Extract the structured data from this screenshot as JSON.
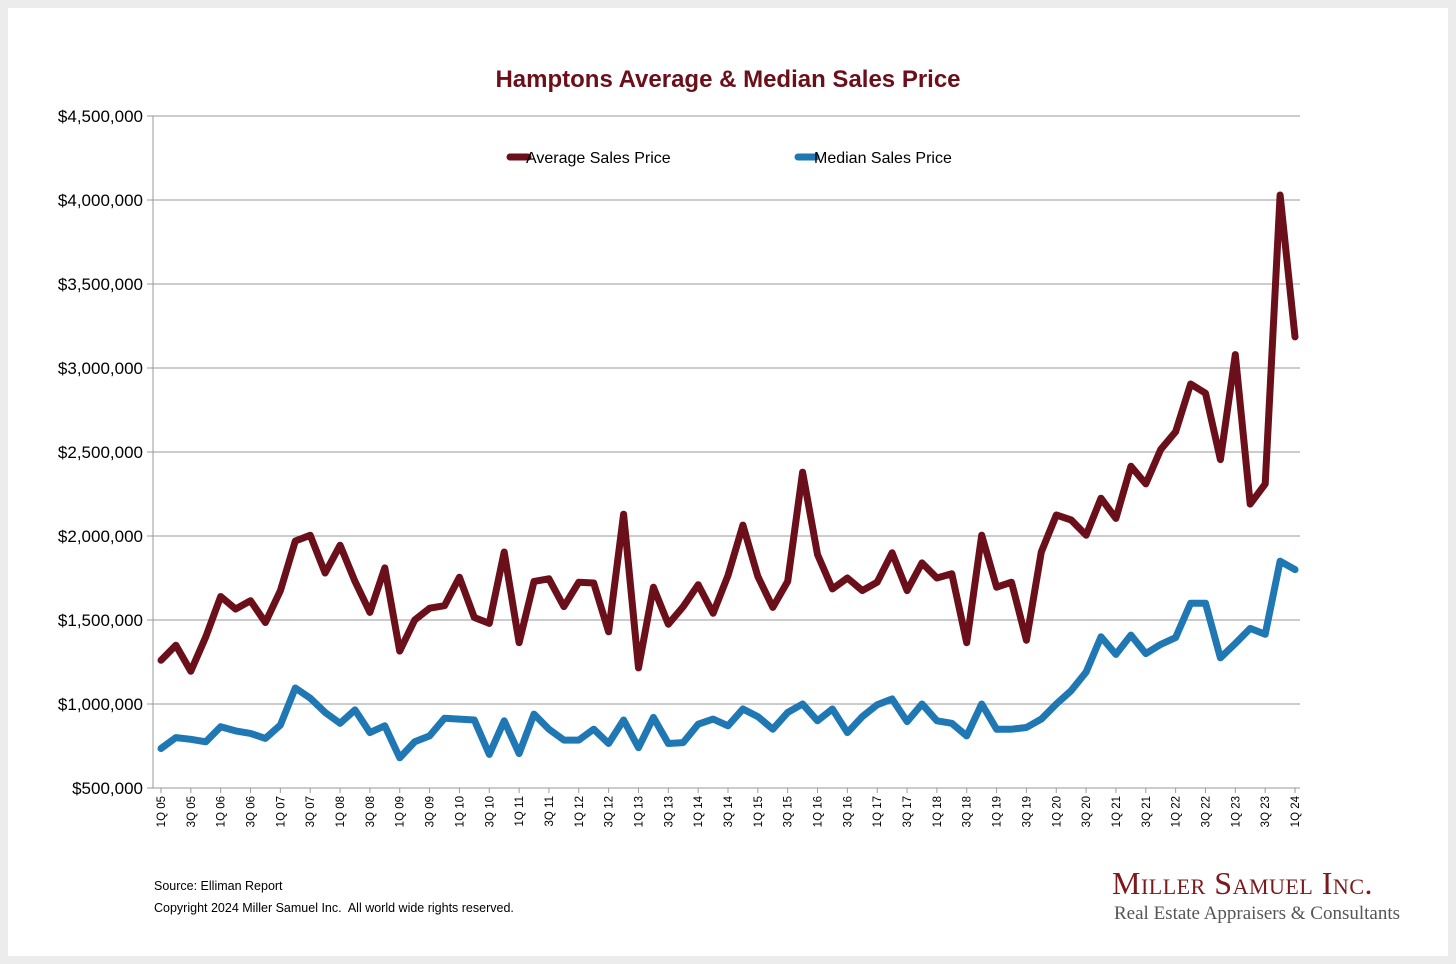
{
  "chart_data": {
    "type": "line",
    "title": "Hamptons Average & Median Sales Price",
    "xlabel": "",
    "ylabel": "",
    "ylim": [
      500000,
      4500000
    ],
    "yticks": [
      500000,
      1000000,
      1500000,
      2000000,
      2500000,
      3000000,
      3500000,
      4000000,
      4500000
    ],
    "ytick_labels": [
      "$500,000",
      "$1,000,000",
      "$1,500,000",
      "$2,000,000",
      "$2,500,000",
      "$3,000,000",
      "$3,500,000",
      "$4,000,000",
      "$4,500,000"
    ],
    "grid": true,
    "legend": "top-center",
    "x": [
      "1Q 05",
      "2Q 05",
      "3Q 05",
      "4Q 05",
      "1Q 06",
      "2Q 06",
      "3Q 06",
      "4Q 06",
      "1Q 07",
      "2Q 07",
      "3Q 07",
      "4Q 07",
      "1Q 08",
      "2Q 08",
      "3Q 08",
      "4Q 08",
      "1Q 09",
      "2Q 09",
      "3Q 09",
      "4Q 09",
      "1Q 10",
      "2Q 10",
      "3Q 10",
      "4Q 10",
      "1Q 11",
      "2Q 11",
      "3Q 11",
      "4Q 11",
      "1Q 12",
      "2Q 12",
      "3Q 12",
      "4Q 12",
      "1Q 13",
      "2Q 13",
      "3Q 13",
      "4Q 13",
      "1Q 14",
      "2Q 14",
      "3Q 14",
      "4Q 14",
      "1Q 15",
      "2Q 15",
      "3Q 15",
      "4Q 15",
      "1Q 16",
      "2Q 16",
      "3Q 16",
      "4Q 16",
      "1Q 17",
      "2Q 17",
      "3Q 17",
      "4Q 17",
      "1Q 18",
      "2Q 18",
      "3Q 18",
      "4Q 18",
      "1Q 19",
      "2Q 19",
      "3Q 19",
      "4Q 19",
      "1Q 20",
      "2Q 20",
      "3Q 20",
      "4Q 20",
      "1Q 21",
      "2Q 21",
      "3Q 21",
      "4Q 21",
      "1Q 22",
      "2Q 22",
      "3Q 22",
      "4Q 22",
      "1Q 23",
      "2Q 23",
      "3Q 23",
      "4Q 23",
      "1Q 24"
    ],
    "xtick_labels": [
      "1Q 05",
      "3Q 05",
      "1Q 06",
      "3Q 06",
      "1Q 07",
      "3Q 07",
      "1Q 08",
      "3Q 08",
      "1Q 09",
      "3Q 09",
      "1Q 10",
      "3Q 10",
      "1Q 11",
      "3Q 11",
      "1Q 12",
      "3Q 12",
      "1Q 13",
      "3Q 13",
      "1Q 14",
      "3Q 14",
      "1Q 15",
      "3Q 15",
      "1Q 16",
      "3Q 16",
      "1Q 17",
      "3Q 17",
      "1Q 18",
      "3Q 18",
      "1Q 19",
      "3Q 19",
      "1Q 20",
      "3Q 20",
      "1Q 21",
      "3Q 21",
      "1Q 22",
      "3Q 22",
      "1Q 23",
      "3Q 23",
      "1Q 24"
    ],
    "series": [
      {
        "name": "Average Sales Price",
        "color": "#6b0f1a",
        "values": [
          1260000,
          1350000,
          1195000,
          1400000,
          1640000,
          1565000,
          1615000,
          1485000,
          1675000,
          1970000,
          2005000,
          1780000,
          1945000,
          1730000,
          1545000,
          1810000,
          1315000,
          1500000,
          1570000,
          1585000,
          1755000,
          1515000,
          1480000,
          1905000,
          1365000,
          1730000,
          1745000,
          1580000,
          1725000,
          1720000,
          1430000,
          2130000,
          1215000,
          1695000,
          1475000,
          1580000,
          1710000,
          1540000,
          1765000,
          2065000,
          1760000,
          1575000,
          1730000,
          2380000,
          1890000,
          1685000,
          1750000,
          1675000,
          1725000,
          1900000,
          1675000,
          1840000,
          1750000,
          1775000,
          1365000,
          2005000,
          1695000,
          1725000,
          1380000,
          1905000,
          2125000,
          2095000,
          2005000,
          2225000,
          2105000,
          2415000,
          2310000,
          2515000,
          2620000,
          2905000,
          2850000,
          2455000,
          3080000,
          2190000,
          2310000,
          4030000,
          3185000
        ]
      },
      {
        "name": "Median Sales Price",
        "color": "#1f77b4",
        "values": [
          735000,
          800000,
          790000,
          775000,
          865000,
          840000,
          825000,
          795000,
          875000,
          1095000,
          1035000,
          950000,
          885000,
          965000,
          830000,
          870000,
          680000,
          775000,
          810000,
          915000,
          910000,
          905000,
          700000,
          900000,
          705000,
          940000,
          850000,
          785000,
          785000,
          850000,
          765000,
          905000,
          740000,
          920000,
          765000,
          770000,
          880000,
          910000,
          870000,
          970000,
          925000,
          850000,
          950000,
          1000000,
          900000,
          970000,
          830000,
          925000,
          995000,
          1030000,
          895000,
          1000000,
          900000,
          885000,
          810000,
          1000000,
          850000,
          850000,
          860000,
          910000,
          1000000,
          1080000,
          1190000,
          1400000,
          1295000,
          1410000,
          1300000,
          1355000,
          1395000,
          1600000,
          1600000,
          1275000,
          1360000,
          1450000,
          1415000,
          1850000,
          1800000
        ]
      }
    ]
  },
  "footer": {
    "source": "Source: Elliman Report",
    "copyright": "Copyright 2024 Miller Samuel Inc.  All world wide rights reserved."
  },
  "brand": {
    "name": "Miller Samuel Inc.",
    "tagline": "Real Estate Appraisers & Consultants"
  }
}
